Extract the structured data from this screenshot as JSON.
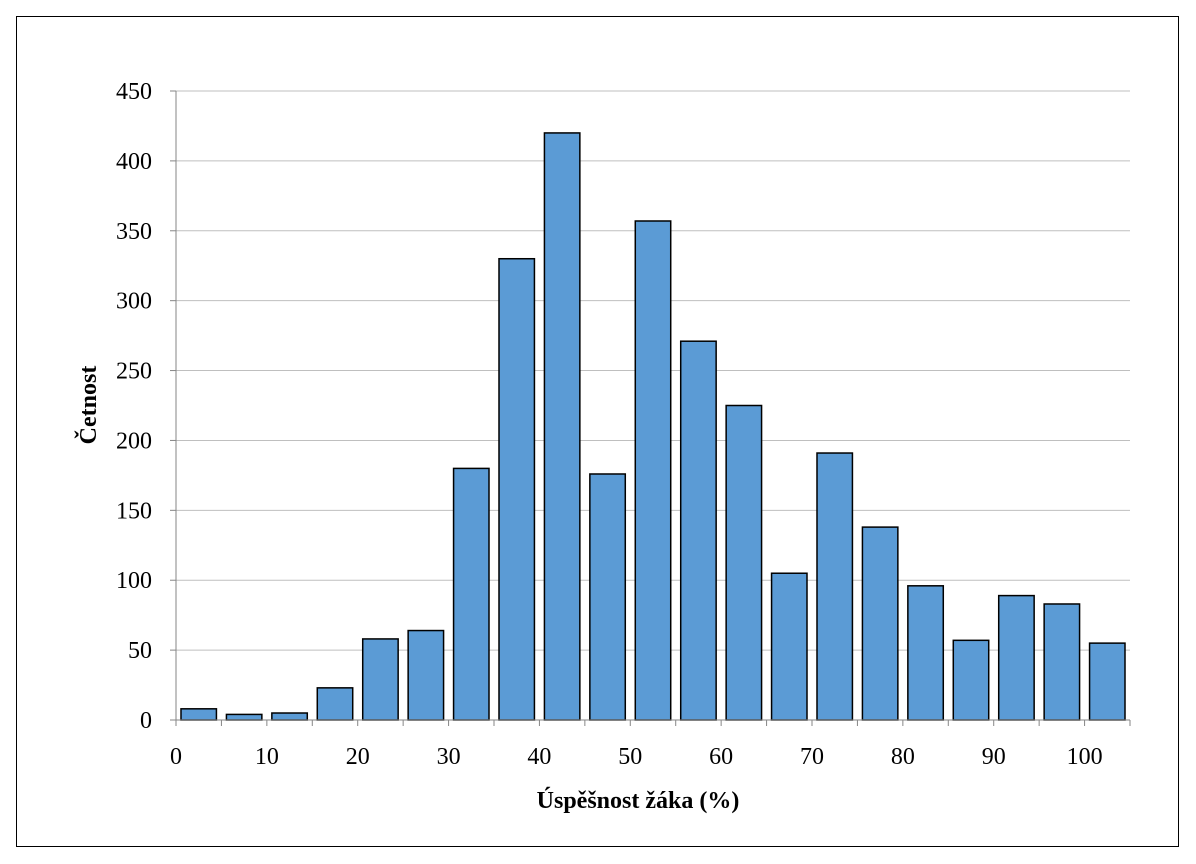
{
  "chart_data": {
    "type": "bar",
    "title": "",
    "xlabel": "Úspěšnost žáka (%)",
    "ylabel": "Četnost",
    "categories": [
      "0",
      "5",
      "10",
      "15",
      "20",
      "25",
      "30",
      "35",
      "40",
      "45",
      "50",
      "55",
      "60",
      "65",
      "70",
      "75",
      "80",
      "85",
      "90",
      "95",
      "100"
    ],
    "values": [
      8,
      4,
      5,
      23,
      58,
      64,
      180,
      330,
      420,
      176,
      357,
      271,
      225,
      105,
      191,
      138,
      96,
      57,
      89,
      83,
      55
    ],
    "x_tick_labels": [
      "0",
      "10",
      "20",
      "30",
      "40",
      "50",
      "60",
      "70",
      "80",
      "90",
      "100"
    ],
    "y_tick_labels": [
      "0",
      "50",
      "100",
      "150",
      "200",
      "250",
      "300",
      "350",
      "400",
      "450"
    ],
    "ylim": [
      0,
      450
    ],
    "xlim": [
      0,
      105
    ],
    "grid": true,
    "legend": "none",
    "bar_color": "#5B9BD5",
    "bar_edge_color": "#000000"
  }
}
